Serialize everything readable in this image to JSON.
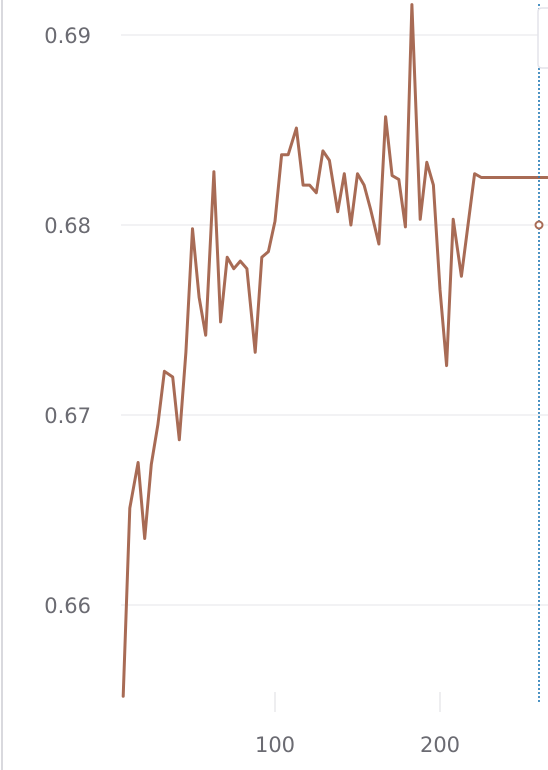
{
  "colors": {
    "series": "#a86b55",
    "cursor": "#1f77b4",
    "grid": "#e6e6e9",
    "tick_text": "#6b6b72"
  },
  "chart_data": {
    "type": "line",
    "grid": true,
    "xlim": [
      8,
      265
    ],
    "ylim": [
      0.6547,
      0.6918
    ],
    "x_ticks": [
      100,
      200
    ],
    "x_tick_labels": [
      "100",
      "200"
    ],
    "y_ticks": [
      0.66,
      0.67,
      0.68,
      0.69
    ],
    "y_tick_labels": [
      "0.66",
      "0.67",
      "0.68",
      "0.69"
    ],
    "cursor_x": 260,
    "cursor_value": 0.68,
    "series": [
      {
        "x": [
          8,
          12,
          17,
          21,
          25,
          29,
          33,
          38,
          42,
          46,
          50,
          54,
          58,
          63,
          67,
          71,
          75,
          79,
          83,
          88,
          92,
          96,
          100,
          104,
          108,
          113,
          117,
          121,
          125,
          129,
          133,
          138,
          142,
          146,
          150,
          154,
          158,
          163,
          167,
          171,
          175,
          179,
          183,
          188,
          192,
          196,
          200,
          204,
          208,
          213,
          217,
          221,
          225,
          229,
          233,
          238,
          242,
          246,
          250,
          254,
          258,
          263,
          265
        ],
        "values": [
          0.6552,
          0.6651,
          0.6675,
          0.6635,
          0.6674,
          0.6695,
          0.6723,
          0.672,
          0.6687,
          0.6733,
          0.6798,
          0.6762,
          0.6742,
          0.6828,
          0.6749,
          0.6783,
          0.6777,
          0.6781,
          0.6777,
          0.6733,
          0.6783,
          0.6786,
          0.6802,
          0.6837,
          0.6837,
          0.6851,
          0.6821,
          0.6821,
          0.6817,
          0.6839,
          0.6834,
          0.6807,
          0.6827,
          0.68,
          0.6827,
          0.6821,
          0.6808,
          0.679,
          0.6857,
          0.6826,
          0.6824,
          0.6799,
          0.6916,
          0.6803,
          0.6833,
          0.6821,
          0.6766,
          0.6726,
          0.6803,
          0.6773,
          0.68,
          0.6827,
          0.6825,
          0.6825,
          0.6825,
          0.6825,
          0.6825,
          0.6825,
          0.6825,
          0.6825,
          0.6825,
          0.6825,
          0.6825
        ]
      }
    ]
  }
}
